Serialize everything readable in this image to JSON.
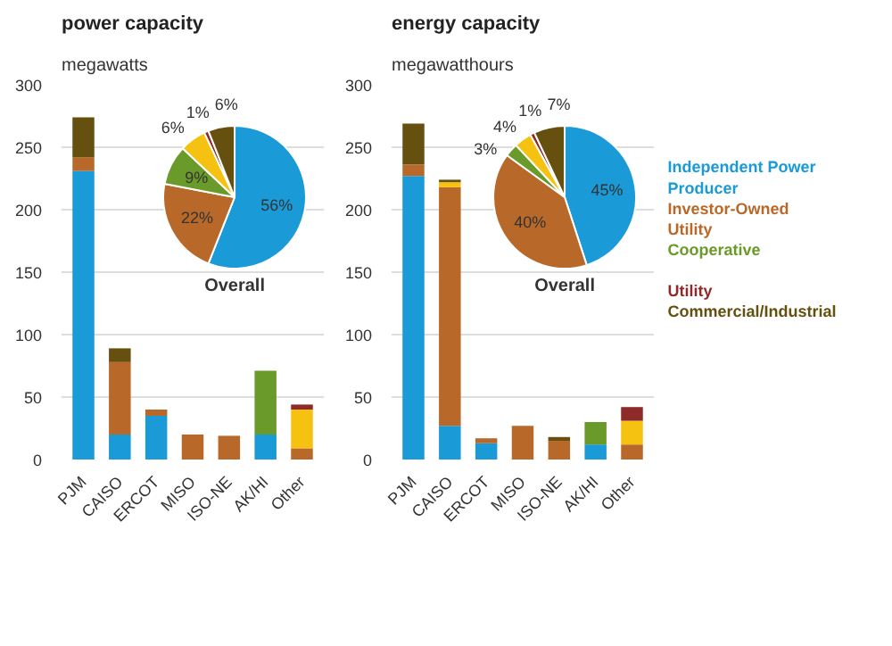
{
  "chart_data": [
    {
      "type": "bar",
      "title": "power capacity",
      "subtitle": "megawatts",
      "categories": [
        "PJM",
        "CAISO",
        "ERCOT",
        "MISO",
        "ISO-NE",
        "AK/HI",
        "Other"
      ],
      "stacked": true,
      "ylim": [
        0,
        300
      ],
      "yticks": [
        0,
        50,
        100,
        150,
        200,
        250,
        300
      ],
      "grid": "y",
      "series": [
        {
          "color": "#1a9ad6",
          "values": [
            231,
            20,
            35,
            null,
            null,
            20,
            null
          ]
        },
        {
          "color": "#b8692a",
          "values": [
            11,
            58,
            5,
            20,
            19,
            null,
            9
          ]
        },
        {
          "color": "#6a9a2a",
          "values": [
            null,
            null,
            null,
            null,
            null,
            51,
            null
          ]
        },
        {
          "color": "#f5c211",
          "values": [
            null,
            null,
            null,
            null,
            null,
            null,
            31
          ]
        },
        {
          "color": "#8e2a2a",
          "values": [
            null,
            null,
            null,
            null,
            null,
            null,
            4
          ]
        },
        {
          "color": "#66500f",
          "values": [
            32,
            11,
            null,
            null,
            null,
            null,
            null
          ]
        }
      ]
    },
    {
      "type": "pie",
      "title": "Overall",
      "categories": [
        null,
        null,
        null,
        null,
        null,
        null
      ],
      "values": [
        56,
        22,
        9,
        6,
        1,
        6
      ],
      "colors": [
        "#1a9ad6",
        "#b8692a",
        "#6a9a2a",
        "#f5c211",
        "#8e2a2a",
        "#66500f"
      ],
      "value_labels": [
        "56%",
        "22%",
        "9%",
        "6%",
        "1%",
        "6%"
      ]
    },
    {
      "type": "bar",
      "title": "energy capacity",
      "subtitle": "megawatthours",
      "categories": [
        "PJM",
        "CAISO",
        "ERCOT",
        "MISO",
        "ISO-NE",
        "AK/HI",
        "Other"
      ],
      "stacked": true,
      "ylim": [
        0,
        300
      ],
      "yticks": [
        0,
        50,
        100,
        150,
        200,
        250,
        300
      ],
      "grid": "y",
      "legend": "right",
      "series": [
        {
          "name": "Independent Power Producer",
          "color": "#1a9ad6",
          "values": [
            227,
            27,
            13,
            null,
            null,
            12,
            null
          ]
        },
        {
          "name": "Investor-Owned Utility",
          "color": "#b8692a",
          "values": [
            9,
            191,
            4,
            27,
            15,
            null,
            12
          ]
        },
        {
          "name": "Cooperative",
          "color": "#6a9a2a",
          "values": [
            null,
            null,
            null,
            null,
            null,
            18,
            null
          ]
        },
        {
          "color": "#f5c211",
          "values": [
            null,
            4,
            null,
            null,
            null,
            null,
            19
          ]
        },
        {
          "name": "Utility",
          "color": "#8e2a2a",
          "values": [
            null,
            null,
            null,
            null,
            null,
            null,
            11
          ]
        },
        {
          "name": "Commercial/Industrial",
          "color": "#66500f",
          "values": [
            33,
            2,
            null,
            null,
            3,
            null,
            null
          ]
        }
      ]
    },
    {
      "type": "pie",
      "title": "Overall",
      "categories": [
        null,
        null,
        null,
        null,
        null,
        null
      ],
      "values": [
        45,
        40,
        3,
        4,
        1,
        7
      ],
      "colors": [
        "#1a9ad6",
        "#b8692a",
        "#6a9a2a",
        "#f5c211",
        "#8e2a2a",
        "#66500f"
      ],
      "value_labels": [
        "45%",
        "40%",
        "3%",
        "4%",
        "1%",
        "7%"
      ]
    }
  ]
}
